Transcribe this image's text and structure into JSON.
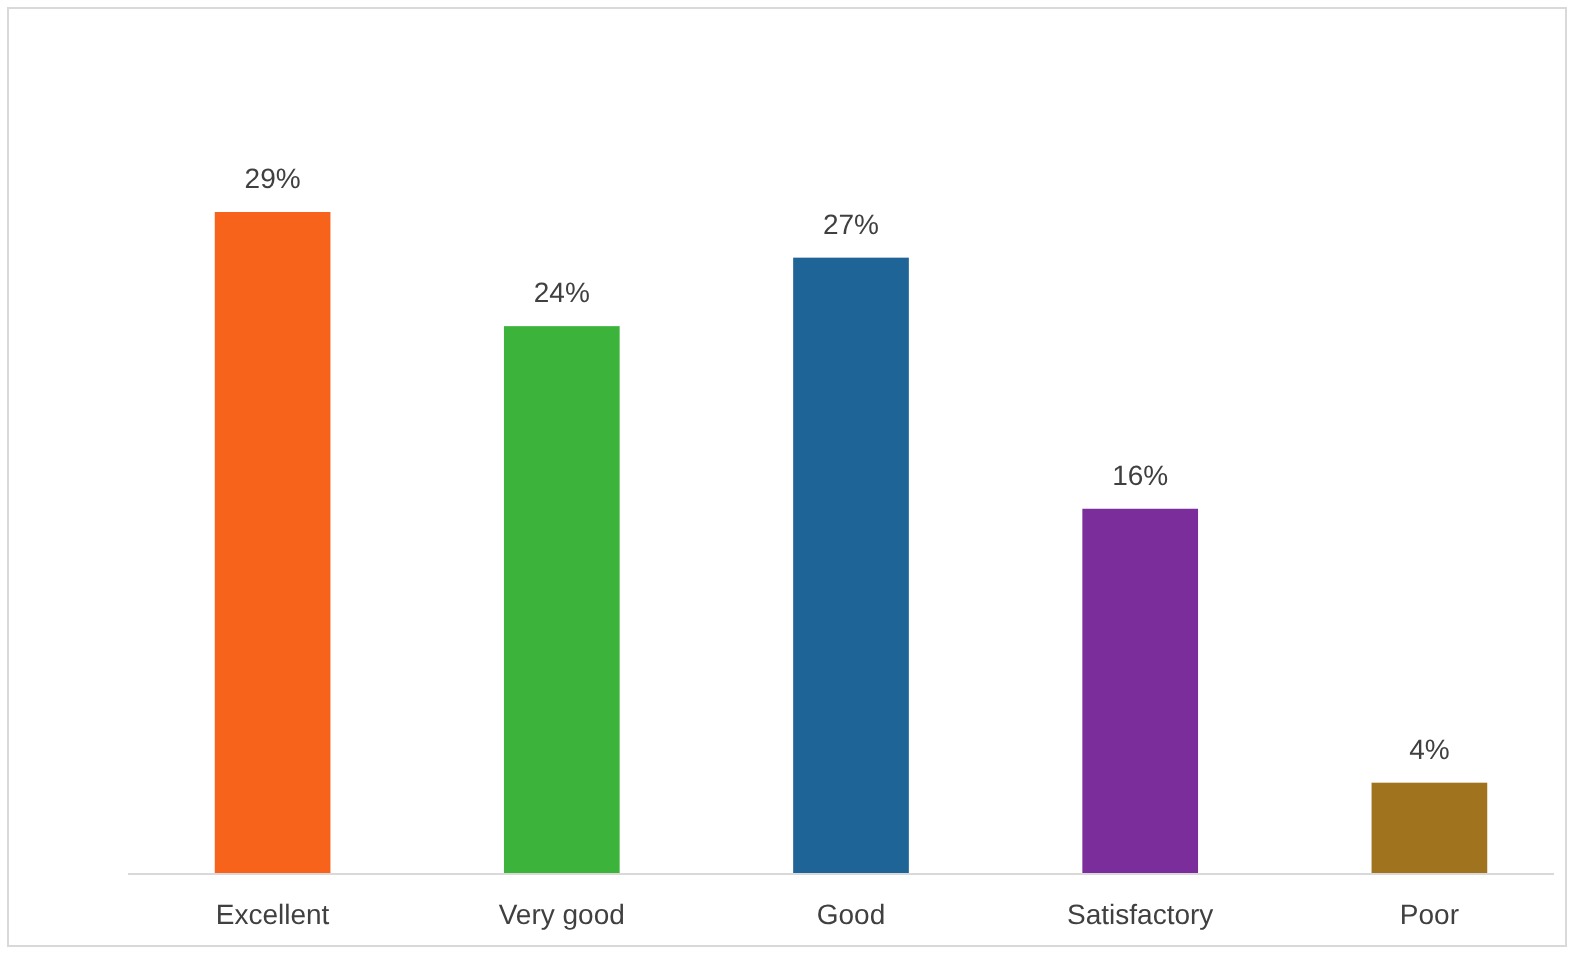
{
  "chart_data": {
    "type": "bar",
    "categories": [
      "Excellent",
      "Very good",
      "Good",
      "Satisfactory",
      "Poor"
    ],
    "values": [
      29,
      24,
      27,
      16,
      4
    ],
    "colors": [
      "#f7631b",
      "#3cb43c",
      "#1f6496",
      "#7b2d9c",
      "#a0731e"
    ],
    "value_labels": [
      "29%",
      "24%",
      "27%",
      "16%",
      "4%"
    ]
  }
}
